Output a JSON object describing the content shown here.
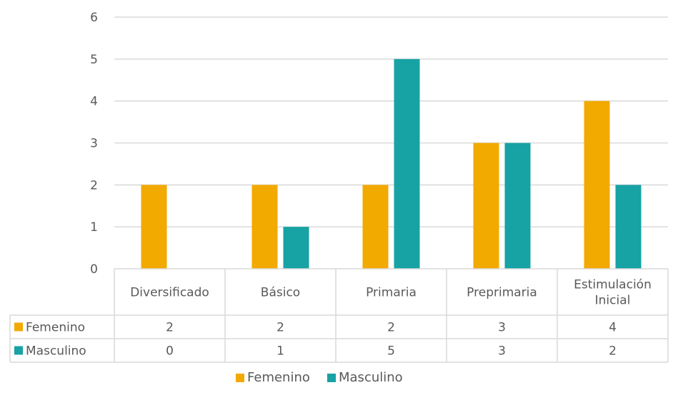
{
  "chart_data": {
    "type": "bar",
    "categories": [
      "Diversificado",
      "Básico",
      "Primaria",
      "Preprimaria",
      "Estimulación Inicial"
    ],
    "series": [
      {
        "name": "Femenino",
        "values": [
          2,
          2,
          2,
          3,
          4
        ],
        "color": "#F2A900"
      },
      {
        "name": "Masculino",
        "values": [
          0,
          1,
          5,
          3,
          2
        ],
        "color": "#17A2A4"
      }
    ],
    "ylim": [
      0,
      6
    ],
    "yticks": [
      "0",
      "1",
      "2",
      "3",
      "4",
      "5",
      "6"
    ],
    "grid": true,
    "legend": "bottom",
    "data_table": true
  }
}
